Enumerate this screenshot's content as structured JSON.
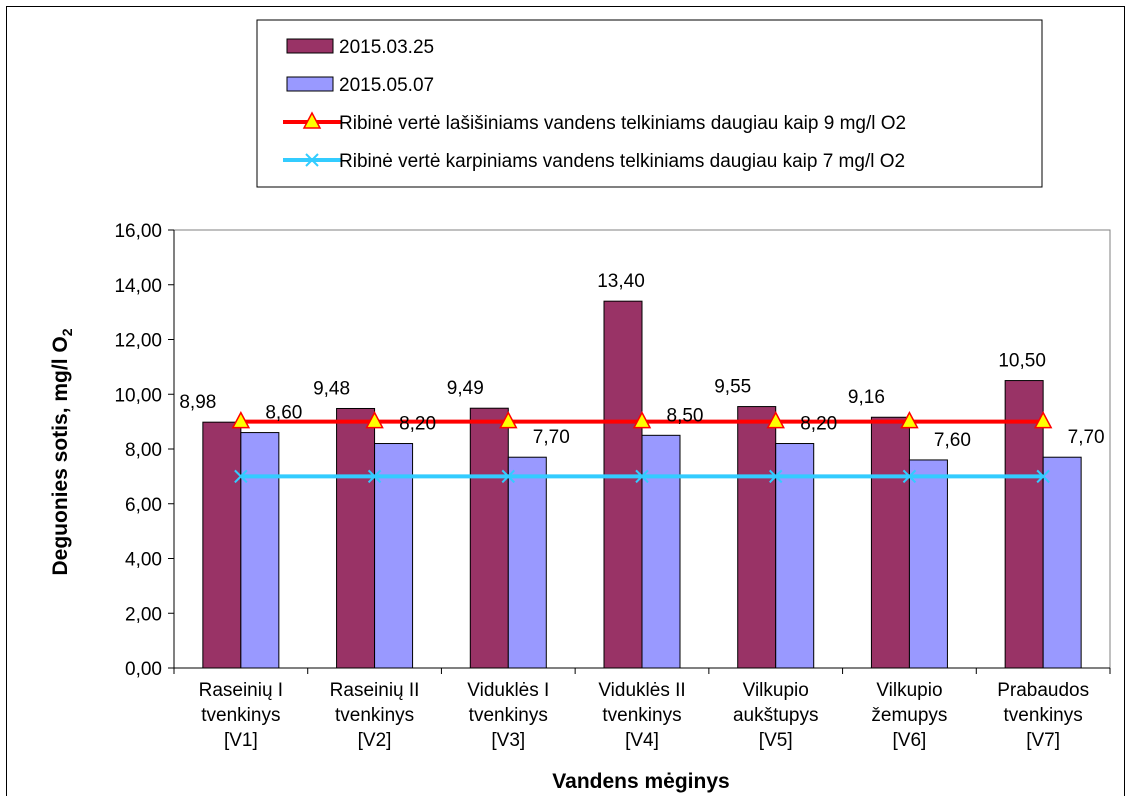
{
  "chart_data": {
    "type": "bar",
    "categories": [
      [
        "Raseinių I",
        "tvenkinys",
        "[V1]"
      ],
      [
        "Raseinių II",
        "tvenkinys",
        "[V2]"
      ],
      [
        "Viduklės I",
        "tvenkinys",
        "[V3]"
      ],
      [
        "Viduklės II",
        "tvenkinys",
        "[V4]"
      ],
      [
        "Vilkupio",
        "aukštupys",
        "[V5]"
      ],
      [
        "Vilkupio",
        "žemupys",
        "[V6]"
      ],
      [
        "Prabaudos",
        "tvenkinys",
        "[V7]"
      ]
    ],
    "series": [
      {
        "name": "2015.03.25",
        "kind": "bar",
        "color": "#993366",
        "values": [
          8.98,
          9.48,
          9.49,
          13.4,
          9.55,
          9.16,
          10.5
        ],
        "labels": [
          "8,98",
          "9,48",
          "9,49",
          "13,40",
          "9,55",
          "9,16",
          "10,50"
        ]
      },
      {
        "name": "2015.05.07",
        "kind": "bar",
        "color": "#9999FF",
        "values": [
          8.6,
          8.2,
          7.7,
          8.5,
          8.2,
          7.6,
          7.7
        ],
        "labels": [
          "8,60",
          "8,20",
          "7,70",
          "8,50",
          "8,20",
          "7,60",
          "7,70"
        ]
      },
      {
        "name": "Ribinė vertė lašišiniams vandens telkiniams daugiau kaip 9 mg/l O2",
        "kind": "line",
        "marker": "triangle",
        "color": "#FF0000",
        "marker_color": "#FFFF00",
        "values": [
          9,
          9,
          9,
          9,
          9,
          9,
          9
        ]
      },
      {
        "name": "Ribinė vertė karpiniams vandens telkiniams daugiau kaip 7 mg/l O2",
        "kind": "line",
        "marker": "x",
        "color": "#33CCFF",
        "values": [
          7,
          7,
          7,
          7,
          7,
          7,
          7
        ]
      }
    ],
    "ylim": [
      0,
      16
    ],
    "yticks": [
      0,
      2,
      4,
      6,
      8,
      10,
      12,
      14,
      16
    ],
    "ytick_labels": [
      "0,00",
      "2,00",
      "4,00",
      "6,00",
      "8,00",
      "10,00",
      "12,00",
      "14,00",
      "16,00"
    ],
    "xlabel": "Vandens mėginys",
    "ylabel_main": "Deguonies sotis, mg/l O",
    "ylabel_sub": "2",
    "plot_background": "#FFFFFF",
    "grid": false,
    "legend_position": "top-center"
  }
}
